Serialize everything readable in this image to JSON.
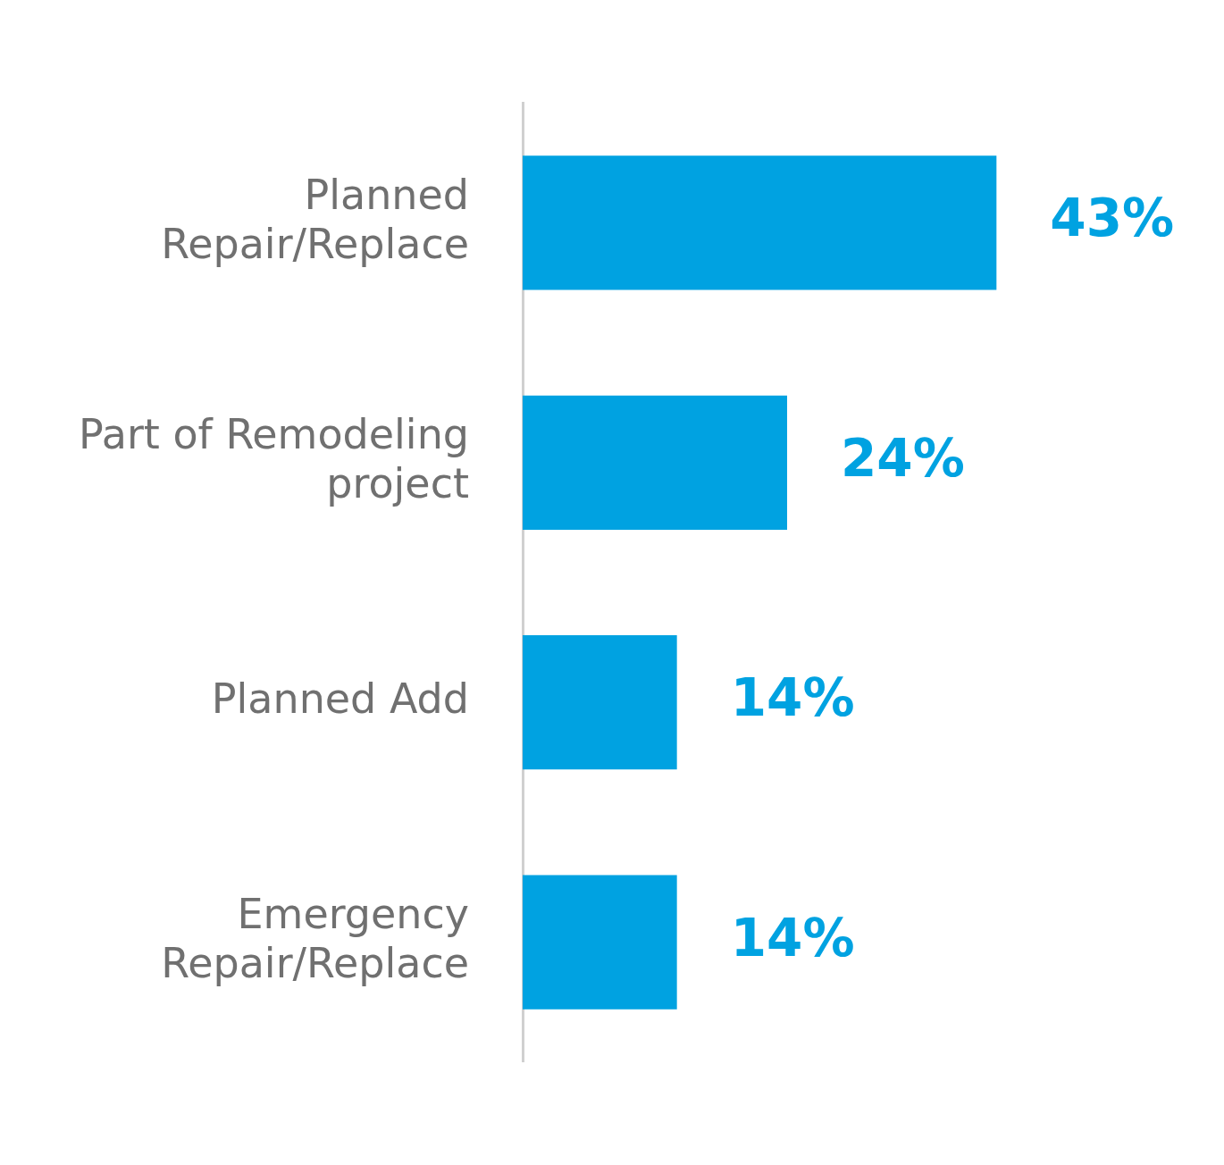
{
  "chart_data": {
    "type": "bar",
    "orientation": "horizontal",
    "categories": [
      "Planned Repair/Replace",
      "Part of Remodeling project",
      "Planned Add",
      "Emergency Repair/Replace"
    ],
    "values": [
      43,
      24,
      14,
      14
    ],
    "color": "#00a2e1",
    "value_labels": [
      "43%",
      "24%",
      "14%",
      "14%"
    ],
    "legend": false,
    "tick_labels": "y"
  }
}
